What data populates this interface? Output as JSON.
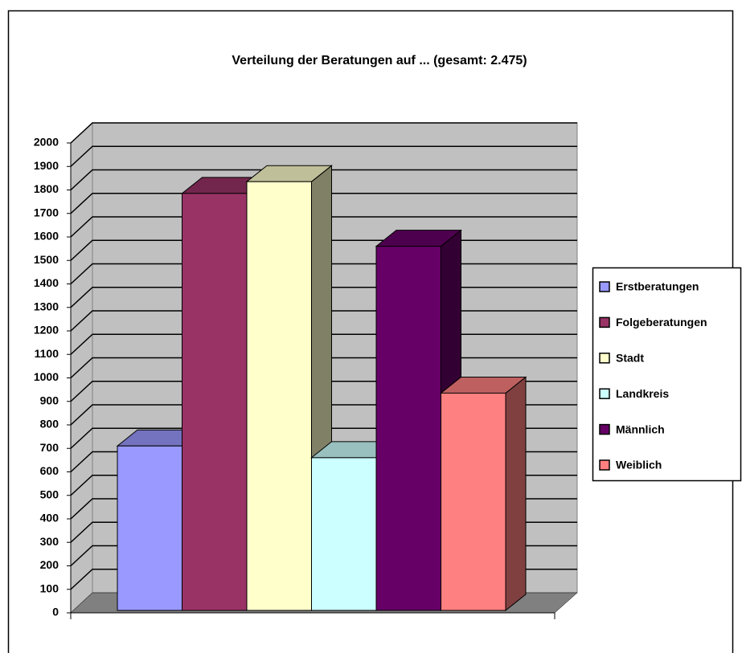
{
  "chart_data": {
    "type": "bar",
    "title": "Verteilung der Beratungen auf ... (gesamt: 2.475)",
    "series": [
      {
        "name": "Erstberatungen",
        "color": "#9999ff",
        "values": [
          700
        ]
      },
      {
        "name": "Folgeberatungen",
        "color": "#993366",
        "values": [
          1775
        ]
      },
      {
        "name": "Stadt",
        "color": "#ffffcc",
        "values": [
          1825
        ]
      },
      {
        "name": "Landkreis",
        "color": "#ccffff",
        "values": [
          650
        ]
      },
      {
        "name": "Männlich",
        "color": "#660066",
        "values": [
          1550
        ]
      },
      {
        "name": "Weiblich",
        "color": "#ff8080",
        "values": [
          925
        ]
      }
    ],
    "ylim": [
      0,
      2000
    ],
    "yticks": [
      0,
      100,
      200,
      300,
      400,
      500,
      600,
      700,
      800,
      900,
      1000,
      1100,
      1200,
      1300,
      1400,
      1500,
      1600,
      1700,
      1800,
      1900,
      2000
    ],
    "grid": true,
    "legend": "right"
  }
}
